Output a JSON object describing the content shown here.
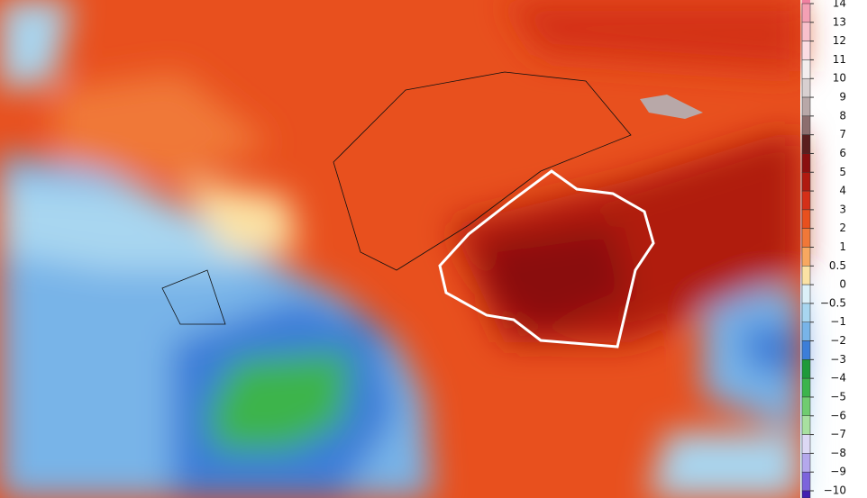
{
  "legend": {
    "labels": [
      "14",
      "13",
      "12",
      "11",
      "10",
      "9",
      "8",
      "7",
      "6",
      "5",
      "4",
      "3",
      "2",
      "1",
      "0.5",
      "0",
      "−0.5",
      "−1",
      "−2",
      "−3",
      "−4",
      "−5",
      "−6",
      "−7",
      "−8",
      "−9",
      "−10"
    ],
    "colors": [
      "#f4a0b4",
      "#f8c0cc",
      "#fbdde3",
      "#f3eeee",
      "#d8d0d0",
      "#b8a8a8",
      "#8c6e6e",
      "#5a1e1e",
      "#8a0f0f",
      "#b01a10",
      "#d43018",
      "#e8501e",
      "#f07838",
      "#f7a860",
      "#fbe2a4",
      "#dcf0f8",
      "#a8d6f0",
      "#78b4e8",
      "#3c7ed8",
      "#1e9a3a",
      "#3cb44c",
      "#70cc70",
      "#a8e0a0",
      "#dcd8f4",
      "#b4a8ec",
      "#7c64dc",
      "#4020b0"
    ]
  }
}
